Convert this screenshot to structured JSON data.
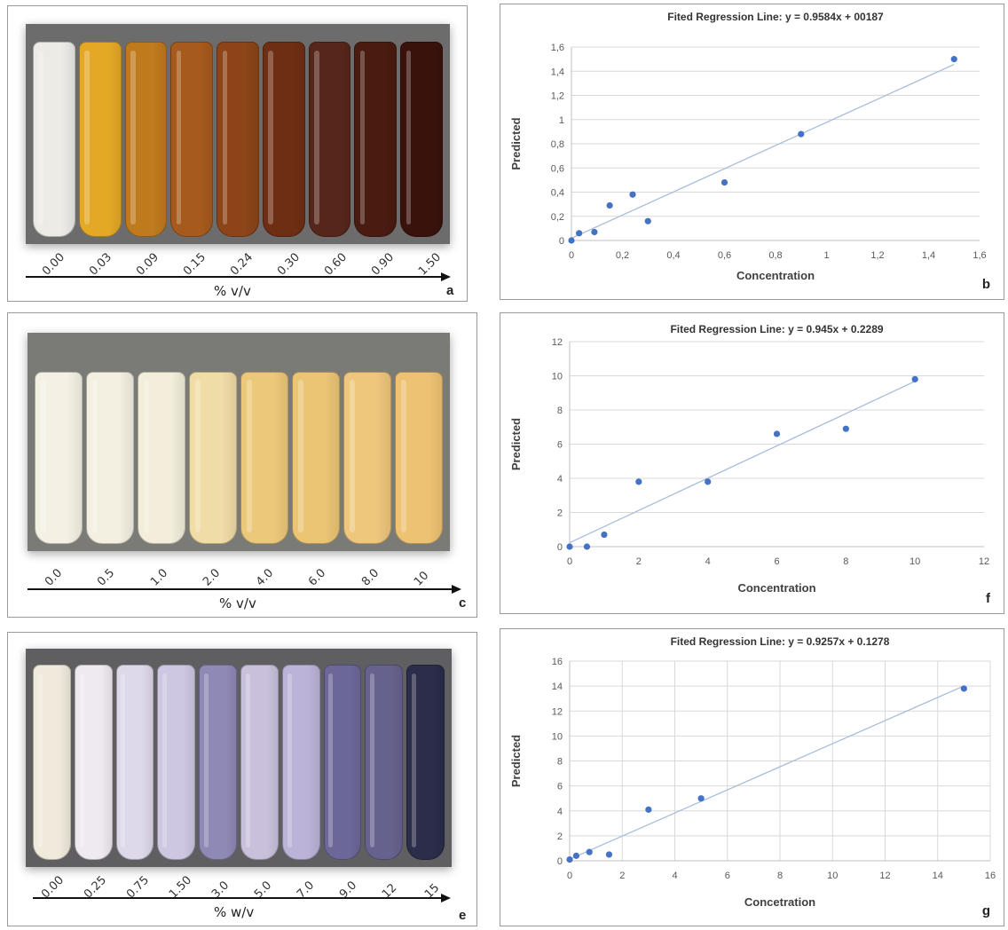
{
  "photo_panels": [
    {
      "id": "a",
      "tick_labels": [
        "0.00",
        "0.03",
        "0.09",
        "0.15",
        "0.24",
        "0.30",
        "0.60",
        "0.90",
        "1.50"
      ],
      "tube_colors": [
        "#ecebe6",
        "#e3a826",
        "#bf7a1d",
        "#a65a1d",
        "#8c4418",
        "#6e2e14",
        "#57261a",
        "#4a1b10",
        "#3a120c"
      ],
      "unit_label": "% v/v",
      "panel_label": "a"
    },
    {
      "id": "c",
      "tick_labels": [
        "0.0",
        "0.5",
        "1.0",
        "2.0",
        "4.0",
        "6.0",
        "8.0",
        "10"
      ],
      "tube_colors": [
        "#f4f1e4",
        "#f3f0e2",
        "#f2eedb",
        "#f0dca6",
        "#ecc87a",
        "#ebc574",
        "#eec67c",
        "#edc273"
      ],
      "unit_label": "% v/v",
      "panel_label": "c"
    },
    {
      "id": "e",
      "tick_labels": [
        "0.00",
        "0.25",
        "0.75",
        "1.50",
        "3.0",
        "5.0",
        "7.0",
        "9.0",
        "12",
        "15"
      ],
      "tube_colors": [
        "#efeadb",
        "#efeaf0",
        "#ddd8ea",
        "#cdc7e2",
        "#8f89b6",
        "#c9c1dc",
        "#bbb3d8",
        "#6c6799",
        "#66628e",
        "#2b2d4a"
      ],
      "unit_label": "% w/v",
      "panel_label": "e"
    }
  ],
  "chart_data": [
    {
      "id": "b",
      "type": "scatter",
      "title": "Fited Regression Line: y = 0.9584x + 00187",
      "xlabel": "Concentration",
      "ylabel": "Predicted",
      "xlim": [
        0,
        1.6
      ],
      "ylim": [
        0,
        1.6
      ],
      "xticks": [
        0,
        0.2,
        0.4,
        0.6,
        0.8,
        1,
        1.2,
        1.4,
        1.6
      ],
      "yticks": [
        0,
        0.2,
        0.4,
        0.6,
        0.8,
        1,
        1.2,
        1.4,
        1.6
      ],
      "xtick_labels": [
        "0",
        "0,2",
        "0,4",
        "0,6",
        "0,8",
        "1",
        "1,2",
        "1,4",
        "1,6"
      ],
      "ytick_labels": [
        "0",
        "0,2",
        "0,4",
        "0,6",
        "0,8",
        "1",
        "1,2",
        "1,4",
        "1,6"
      ],
      "grid": "horizontal",
      "points": [
        [
          0,
          0
        ],
        [
          0.03,
          0.06
        ],
        [
          0.09,
          0.07
        ],
        [
          0.15,
          0.29
        ],
        [
          0.24,
          0.38
        ],
        [
          0.3,
          0.16
        ],
        [
          0.6,
          0.48
        ],
        [
          0.9,
          0.88
        ],
        [
          1.5,
          1.5
        ]
      ],
      "trendline": {
        "slope": 0.9584,
        "intercept": 0.0187
      },
      "marker_color": "#4472c4",
      "line_color": "#a9bcdc",
      "panel_label": "b"
    },
    {
      "id": "f",
      "type": "scatter",
      "title": "Fited Regression Line: y = 0.945x + 0.2289",
      "xlabel": "Concentration",
      "ylabel": "Predicted",
      "xlim": [
        0,
        12
      ],
      "ylim": [
        0,
        12
      ],
      "xticks": [
        0,
        2,
        4,
        6,
        8,
        10,
        12
      ],
      "yticks": [
        0,
        2,
        4,
        6,
        8,
        10,
        12
      ],
      "xtick_labels": [
        "0",
        "2",
        "4",
        "6",
        "8",
        "10",
        "12"
      ],
      "ytick_labels": [
        "0",
        "2",
        "4",
        "6",
        "8",
        "10",
        "12"
      ],
      "grid": "horizontal",
      "points": [
        [
          0,
          0
        ],
        [
          0.5,
          0
        ],
        [
          1,
          0.7
        ],
        [
          2,
          3.8
        ],
        [
          4,
          3.8
        ],
        [
          6,
          6.6
        ],
        [
          8,
          6.9
        ],
        [
          10,
          9.8
        ]
      ],
      "trendline": {
        "slope": 0.945,
        "intercept": 0.2289
      },
      "marker_color": "#4472c4",
      "line_color": "#a9bcdc",
      "panel_label": "f"
    },
    {
      "id": "g",
      "type": "scatter",
      "title": "Fited Regression Line: y = 0.9257x + 0.1278",
      "xlabel": "Concetration",
      "ylabel": "Predicted",
      "xlim": [
        0,
        16
      ],
      "ylim": [
        0,
        16
      ],
      "xticks": [
        0,
        2,
        4,
        6,
        8,
        10,
        12,
        14,
        16
      ],
      "yticks": [
        0,
        2,
        4,
        6,
        8,
        10,
        12,
        14,
        16
      ],
      "xtick_labels": [
        "0",
        "2",
        "4",
        "6",
        "8",
        "10",
        "12",
        "14",
        "16"
      ],
      "ytick_labels": [
        "0",
        "2",
        "4",
        "6",
        "8",
        "10",
        "12",
        "14",
        "16"
      ],
      "grid": "both",
      "points": [
        [
          0,
          0.1
        ],
        [
          0.25,
          0.4
        ],
        [
          0.75,
          0.7
        ],
        [
          1.5,
          0.5
        ],
        [
          3,
          4.1
        ],
        [
          5,
          5
        ],
        [
          15,
          13.8
        ]
      ],
      "trendline": {
        "slope": 0.9257,
        "intercept": 0.1278
      },
      "marker_color": "#4472c4",
      "line_color": "#a9bcdc",
      "panel_label": "g"
    }
  ]
}
